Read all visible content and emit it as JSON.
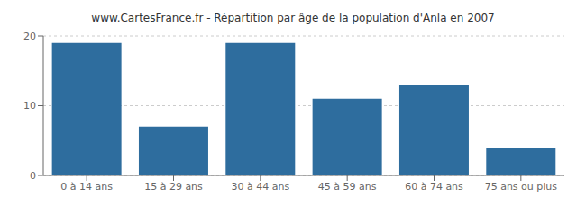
{
  "chart_data": {
    "type": "bar",
    "title": "www.CartesFrance.fr - Répartition par âge de la population d'Anla en 2007",
    "categories": [
      "0 à 14 ans",
      "15 à 29 ans",
      "30 à 44 ans",
      "45 à 59 ans",
      "60 à 74 ans",
      "75 ans ou plus"
    ],
    "values": [
      19,
      7,
      19,
      11,
      13,
      4
    ],
    "color": "#2e6d9e",
    "ylim": [
      0,
      20
    ],
    "yticks": [
      0,
      10,
      20
    ],
    "grid": true
  }
}
